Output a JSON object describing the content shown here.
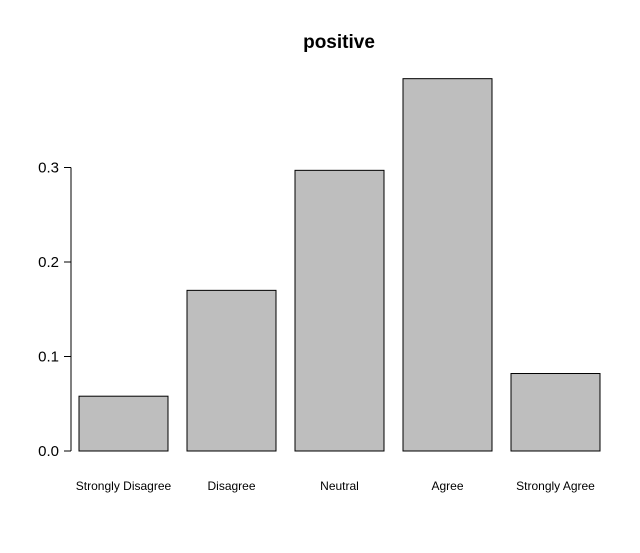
{
  "chart_data": {
    "type": "bar",
    "title": "positive",
    "xlabel": "",
    "ylabel": "",
    "categories": [
      "Strongly Disagree",
      "Disagree",
      "Neutral",
      "Agree",
      "Strongly Agree"
    ],
    "values": [
      0.058,
      0.17,
      0.297,
      0.394,
      0.082
    ],
    "yticks": [
      0.0,
      0.1,
      0.2,
      0.3
    ],
    "ytick_labels": [
      "0.0",
      "0.1",
      "0.2",
      "0.3"
    ],
    "ylim": [
      0,
      0.4
    ],
    "grid": false,
    "legend": "none",
    "bar_fill": "#bebebe",
    "bar_stroke": "#000000"
  }
}
